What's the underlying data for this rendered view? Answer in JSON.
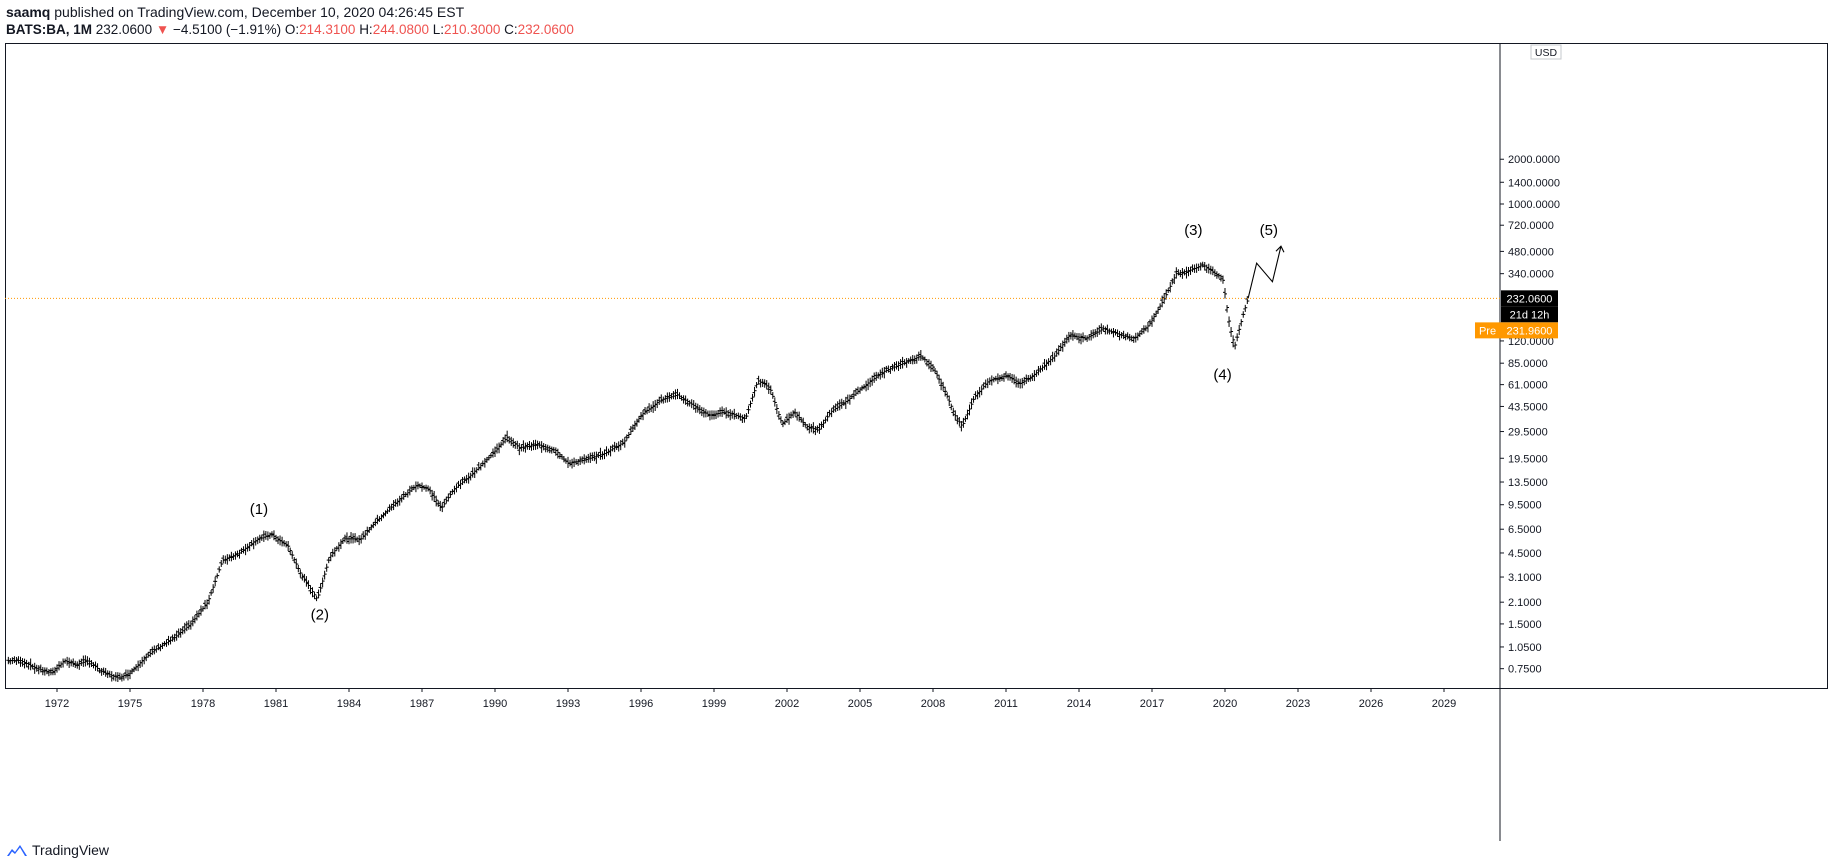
{
  "header": {
    "author": "saamq",
    "published_text": "published on TradingView.com, December 10, 2020 04:26:45 EST",
    "symbol": "BATS:BA, 1M",
    "last": "232.0600",
    "change": "−4.5100 (−1.91%)",
    "open_label": "O:",
    "open": "214.3100",
    "high_label": "H:",
    "high": "244.0800",
    "low_label": "L:",
    "low": "210.3000",
    "close_label": "C:",
    "close": "232.0600"
  },
  "chart_data": {
    "type": "ohlc-bar",
    "y_scale": "log",
    "currency": "USD",
    "y_ticks": [
      "2000.0000",
      "1400.0000",
      "1000.0000",
      "720.0000",
      "480.0000",
      "340.0000",
      "120.0000",
      "85.0000",
      "61.0000",
      "43.5000",
      "29.5000",
      "19.5000",
      "13.5000",
      "9.5000",
      "6.5000",
      "4.5000",
      "3.1000",
      "2.1000",
      "1.5000",
      "1.0500",
      "0.7500"
    ],
    "x_ticks": [
      "1972",
      "1975",
      "1978",
      "1981",
      "1984",
      "1987",
      "1990",
      "1993",
      "1996",
      "1999",
      "2002",
      "2005",
      "2008",
      "2011",
      "2014",
      "2017",
      "2020",
      "2023",
      "2026",
      "2029"
    ],
    "last_price": "232.0600",
    "countdown": "21d 12h",
    "pre_label": "Pre",
    "pre_price": "231.9600",
    "colors": {
      "last_price_tag": "#000000",
      "pre_tag": "#ff9800",
      "price_line": "#ff9800",
      "bars": "#000000"
    },
    "approx_close_path": [
      [
        1970.5,
        0.85
      ],
      [
        1971.2,
        0.75
      ],
      [
        1971.8,
        0.7
      ],
      [
        1972.3,
        0.85
      ],
      [
        1972.8,
        0.8
      ],
      [
        1973.3,
        0.85
      ],
      [
        1973.8,
        0.72
      ],
      [
        1974.5,
        0.65
      ],
      [
        1975.0,
        0.7
      ],
      [
        1975.5,
        0.85
      ],
      [
        1976.0,
        1.0
      ],
      [
        1976.8,
        1.2
      ],
      [
        1977.5,
        1.5
      ],
      [
        1978.2,
        2.1
      ],
      [
        1978.8,
        4.0
      ],
      [
        1979.5,
        4.5
      ],
      [
        1980.2,
        5.5
      ],
      [
        1980.8,
        6.0
      ],
      [
        1981.5,
        5.0
      ],
      [
        1982.0,
        3.3
      ],
      [
        1982.7,
        2.2
      ],
      [
        1983.2,
        4.2
      ],
      [
        1983.8,
        5.6
      ],
      [
        1984.5,
        5.6
      ],
      [
        1985.0,
        7.0
      ],
      [
        1985.7,
        9.0
      ],
      [
        1986.3,
        11
      ],
      [
        1986.8,
        13
      ],
      [
        1987.3,
        12
      ],
      [
        1987.8,
        9.0
      ],
      [
        1988.3,
        12
      ],
      [
        1989.0,
        15
      ],
      [
        1989.8,
        20
      ],
      [
        1990.5,
        27
      ],
      [
        1991.0,
        23
      ],
      [
        1991.8,
        24
      ],
      [
        1992.5,
        22
      ],
      [
        1993.0,
        18
      ],
      [
        1993.7,
        19
      ],
      [
        1994.5,
        21
      ],
      [
        1995.3,
        25
      ],
      [
        1996.0,
        38
      ],
      [
        1996.8,
        48
      ],
      [
        1997.5,
        52
      ],
      [
        1998.0,
        46
      ],
      [
        1998.8,
        38
      ],
      [
        1999.5,
        40
      ],
      [
        2000.3,
        36
      ],
      [
        2000.8,
        65
      ],
      [
        2001.3,
        58
      ],
      [
        2001.8,
        33
      ],
      [
        2002.3,
        40
      ],
      [
        2002.8,
        32
      ],
      [
        2003.3,
        30
      ],
      [
        2003.8,
        40
      ],
      [
        2004.5,
        48
      ],
      [
        2005.3,
        62
      ],
      [
        2006.0,
        75
      ],
      [
        2006.8,
        85
      ],
      [
        2007.5,
        95
      ],
      [
        2008.0,
        80
      ],
      [
        2008.5,
        55
      ],
      [
        2008.9,
        38
      ],
      [
        2009.2,
        32
      ],
      [
        2009.7,
        50
      ],
      [
        2010.3,
        65
      ],
      [
        2011.0,
        70
      ],
      [
        2011.6,
        62
      ],
      [
        2012.2,
        72
      ],
      [
        2013.0,
        95
      ],
      [
        2013.6,
        130
      ],
      [
        2014.3,
        125
      ],
      [
        2015.0,
        145
      ],
      [
        2015.8,
        130
      ],
      [
        2016.3,
        125
      ],
      [
        2016.9,
        155
      ],
      [
        2017.5,
        230
      ],
      [
        2018.0,
        340
      ],
      [
        2018.6,
        360
      ],
      [
        2019.1,
        390
      ],
      [
        2019.6,
        340
      ],
      [
        2019.9,
        320
      ],
      [
        2020.2,
        150
      ],
      [
        2020.4,
        110
      ],
      [
        2020.7,
        170
      ],
      [
        2020.95,
        232
      ]
    ],
    "annotations": [
      "(1)",
      "(2)",
      "(3)",
      "(4)",
      "(5)"
    ]
  },
  "footer": {
    "brand": "TradingView"
  }
}
